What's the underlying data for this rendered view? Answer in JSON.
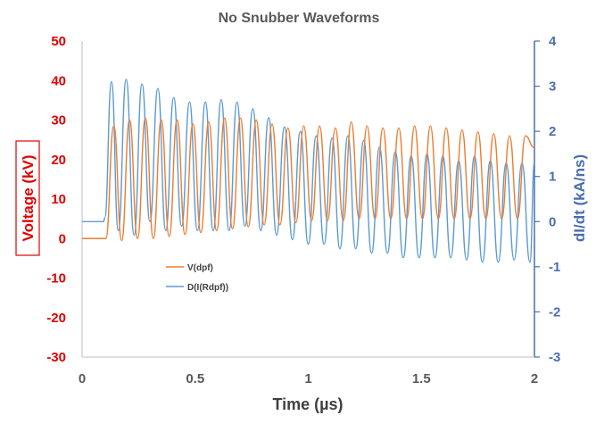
{
  "chart_data": {
    "type": "line",
    "title": "No Snubber Waveforms",
    "xlabel": "Time (µs)",
    "ylabel_left": "Voltage (kV)",
    "ylabel_right": "dI/dt  (kA/ns)",
    "xlim": [
      0,
      2
    ],
    "ylim_left": [
      -30,
      50
    ],
    "ylim_right": [
      -3,
      4
    ],
    "xticks": [
      "0",
      "0.5",
      "1",
      "1.5",
      "2"
    ],
    "xtick_values": [
      0,
      0.5,
      1,
      1.5,
      2
    ],
    "yticks_left": [
      "50",
      "40",
      "30",
      "20",
      "10",
      "0",
      "-10",
      "-20",
      "-30"
    ],
    "ytick_values_left": [
      50,
      40,
      30,
      20,
      10,
      0,
      -10,
      -20,
      -30
    ],
    "yticks_right": [
      "4",
      "3",
      "2",
      "1",
      "0",
      "-1",
      "-2",
      "-3"
    ],
    "ytick_values_right": [
      4,
      3,
      2,
      1,
      0,
      -1,
      -2,
      -3
    ],
    "grid": false,
    "legend_position": "center-left",
    "colors": {
      "vdpf": "#ed7d31",
      "didt": "#5b9bd5",
      "left_axis": "#e00000",
      "right_axis": "#4a6fae"
    },
    "series": [
      {
        "name": "V(dpf)",
        "axis": "left",
        "color": "#ed7d31",
        "x": [
          0.0,
          0.105,
          0.14,
          0.175,
          0.21,
          0.245,
          0.28,
          0.315,
          0.35,
          0.385,
          0.42,
          0.455,
          0.49,
          0.525,
          0.56,
          0.595,
          0.63,
          0.665,
          0.7,
          0.735,
          0.77,
          0.805,
          0.84,
          0.875,
          0.91,
          0.945,
          0.98,
          1.015,
          1.05,
          1.085,
          1.12,
          1.155,
          1.19,
          1.225,
          1.26,
          1.295,
          1.33,
          1.365,
          1.4,
          1.435,
          1.47,
          1.505,
          1.54,
          1.575,
          1.61,
          1.645,
          1.68,
          1.715,
          1.75,
          1.785,
          1.82,
          1.855,
          1.89,
          1.925,
          1.96,
          2.0
        ],
        "y": [
          0,
          0,
          28.5,
          -0.5,
          30,
          0,
          30.5,
          0,
          30,
          0.5,
          30,
          1,
          29,
          1.5,
          29.5,
          2,
          30.5,
          2.5,
          30.5,
          3,
          30,
          3.5,
          29,
          3.5,
          28,
          4,
          28.5,
          4.5,
          28.5,
          4.5,
          28,
          4.5,
          29.5,
          5,
          28.5,
          5,
          28,
          5,
          28,
          5,
          28.5,
          5,
          28.5,
          5,
          28,
          5,
          27.5,
          5,
          27,
          5,
          26.5,
          5,
          26,
          5,
          26,
          23
        ]
      },
      {
        "name": "D(I(Rdpf))",
        "axis": "right",
        "color": "#5b9bd5",
        "x": [
          0.0,
          0.095,
          0.1,
          0.13,
          0.16,
          0.195,
          0.23,
          0.265,
          0.3,
          0.335,
          0.37,
          0.405,
          0.44,
          0.475,
          0.51,
          0.545,
          0.58,
          0.615,
          0.65,
          0.685,
          0.72,
          0.755,
          0.79,
          0.825,
          0.86,
          0.895,
          0.93,
          0.965,
          1.0,
          1.035,
          1.07,
          1.105,
          1.14,
          1.175,
          1.21,
          1.245,
          1.28,
          1.315,
          1.35,
          1.385,
          1.42,
          1.455,
          1.49,
          1.525,
          1.56,
          1.595,
          1.63,
          1.665,
          1.7,
          1.735,
          1.77,
          1.805,
          1.84,
          1.875,
          1.91,
          1.945,
          1.98,
          2.0
        ],
        "y": [
          0,
          0,
          0.08,
          3.1,
          -0.2,
          3.15,
          -0.3,
          3.05,
          0,
          2.95,
          -0.2,
          2.75,
          -0.1,
          2.65,
          -0.2,
          2.65,
          -0.2,
          2.7,
          -0.2,
          2.65,
          -0.1,
          2.5,
          -0.2,
          2.3,
          -0.3,
          2.1,
          -0.4,
          2.0,
          -0.5,
          1.9,
          -0.5,
          1.85,
          -0.6,
          1.9,
          -0.6,
          1.8,
          -0.7,
          1.65,
          -0.7,
          1.55,
          -0.8,
          1.45,
          -0.8,
          1.5,
          -0.8,
          1.45,
          -0.8,
          1.35,
          -0.85,
          1.45,
          -0.9,
          1.35,
          -0.9,
          1.3,
          -0.85,
          1.3,
          -0.9,
          1.3
        ]
      }
    ]
  }
}
